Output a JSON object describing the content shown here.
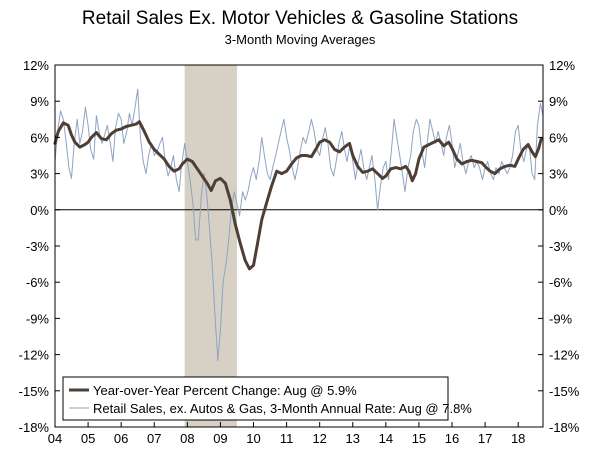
{
  "chart_data": {
    "type": "line",
    "title": "Retail Sales Ex. Motor Vehicles & Gasoline Stations",
    "subtitle": "3-Month Moving Averages",
    "xlabel": "",
    "ylabel": "",
    "ylim": [
      -18,
      12
    ],
    "xlim": [
      2004.0,
      2018.75
    ],
    "y_ticks": [
      12,
      9,
      6,
      3,
      0,
      -3,
      -6,
      -9,
      -12,
      -15,
      -18
    ],
    "y_tick_labels": [
      "12%",
      "9%",
      "6%",
      "3%",
      "0%",
      "-3%",
      "-6%",
      "-9%",
      "-12%",
      "-15%",
      "-18%"
    ],
    "x_tick_labels": [
      "04",
      "05",
      "06",
      "07",
      "08",
      "09",
      "10",
      "11",
      "12",
      "13",
      "14",
      "15",
      "16",
      "17",
      "18"
    ],
    "recession_shading": {
      "start": 2007.92,
      "end": 2009.5
    },
    "legend_position": "bottom-left",
    "series": [
      {
        "name": "Year-over-Year Percent Change: Aug @ 5.9%",
        "color": "#4d3f35",
        "points": [
          [
            2004.0,
            5.5
          ],
          [
            2004.1,
            6.5
          ],
          [
            2004.25,
            7.2
          ],
          [
            2004.4,
            7.0
          ],
          [
            2004.5,
            6.2
          ],
          [
            2004.6,
            5.6
          ],
          [
            2004.75,
            5.2
          ],
          [
            2004.9,
            5.4
          ],
          [
            2005.0,
            5.6
          ],
          [
            2005.1,
            6.0
          ],
          [
            2005.25,
            6.4
          ],
          [
            2005.4,
            5.9
          ],
          [
            2005.55,
            5.8
          ],
          [
            2005.7,
            6.3
          ],
          [
            2005.85,
            6.6
          ],
          [
            2006.0,
            6.7
          ],
          [
            2006.15,
            6.9
          ],
          [
            2006.3,
            7.0
          ],
          [
            2006.45,
            7.1
          ],
          [
            2006.55,
            7.3
          ],
          [
            2006.7,
            6.5
          ],
          [
            2006.85,
            5.6
          ],
          [
            2007.0,
            5.0
          ],
          [
            2007.15,
            4.6
          ],
          [
            2007.3,
            4.2
          ],
          [
            2007.45,
            3.6
          ],
          [
            2007.6,
            3.2
          ],
          [
            2007.75,
            3.4
          ],
          [
            2007.85,
            3.8
          ],
          [
            2008.0,
            4.2
          ],
          [
            2008.15,
            4.0
          ],
          [
            2008.3,
            3.4
          ],
          [
            2008.45,
            2.8
          ],
          [
            2008.6,
            2.2
          ],
          [
            2008.72,
            1.6
          ],
          [
            2008.85,
            2.4
          ],
          [
            2009.0,
            2.6
          ],
          [
            2009.15,
            2.2
          ],
          [
            2009.3,
            0.8
          ],
          [
            2009.45,
            -1.2
          ],
          [
            2009.6,
            -2.8
          ],
          [
            2009.75,
            -4.2
          ],
          [
            2009.88,
            -4.9
          ],
          [
            2010.0,
            -4.6
          ],
          [
            2010.12,
            -2.8
          ],
          [
            2010.25,
            -0.8
          ],
          [
            2010.4,
            0.6
          ],
          [
            2010.55,
            2.0
          ],
          [
            2010.7,
            3.2
          ],
          [
            2010.85,
            3.0
          ],
          [
            2011.0,
            3.2
          ],
          [
            2011.15,
            3.8
          ],
          [
            2011.3,
            4.3
          ],
          [
            2011.45,
            4.5
          ],
          [
            2011.6,
            4.5
          ],
          [
            2011.75,
            4.4
          ],
          [
            2011.9,
            5.1
          ],
          [
            2012.0,
            5.6
          ],
          [
            2012.15,
            5.8
          ],
          [
            2012.3,
            5.6
          ],
          [
            2012.45,
            5.0
          ],
          [
            2012.6,
            4.8
          ],
          [
            2012.75,
            5.2
          ],
          [
            2012.9,
            5.5
          ],
          [
            2013.0,
            4.5
          ],
          [
            2013.15,
            3.6
          ],
          [
            2013.3,
            3.1
          ],
          [
            2013.45,
            3.2
          ],
          [
            2013.6,
            3.4
          ],
          [
            2013.75,
            3.0
          ],
          [
            2013.9,
            2.6
          ],
          [
            2014.0,
            2.8
          ],
          [
            2014.15,
            3.4
          ],
          [
            2014.3,
            3.5
          ],
          [
            2014.45,
            3.4
          ],
          [
            2014.6,
            3.6
          ],
          [
            2014.7,
            3.2
          ],
          [
            2014.8,
            2.4
          ],
          [
            2014.9,
            3.0
          ],
          [
            2015.0,
            4.2
          ],
          [
            2015.15,
            5.2
          ],
          [
            2015.3,
            5.4
          ],
          [
            2015.45,
            5.6
          ],
          [
            2015.6,
            5.8
          ],
          [
            2015.75,
            5.3
          ],
          [
            2015.9,
            5.6
          ],
          [
            2016.0,
            5.1
          ],
          [
            2016.15,
            4.2
          ],
          [
            2016.3,
            3.8
          ],
          [
            2016.45,
            4.0
          ],
          [
            2016.6,
            4.1
          ],
          [
            2016.75,
            4.0
          ],
          [
            2016.9,
            3.9
          ],
          [
            2017.0,
            3.6
          ],
          [
            2017.15,
            3.2
          ],
          [
            2017.3,
            3.0
          ],
          [
            2017.45,
            3.4
          ],
          [
            2017.6,
            3.6
          ],
          [
            2017.75,
            3.7
          ],
          [
            2017.9,
            3.6
          ],
          [
            2018.0,
            4.2
          ],
          [
            2018.15,
            5.0
          ],
          [
            2018.3,
            5.4
          ],
          [
            2018.42,
            4.8
          ],
          [
            2018.52,
            4.4
          ],
          [
            2018.62,
            5.1
          ],
          [
            2018.7,
            5.9
          ]
        ]
      },
      {
        "name": "Retail Sales, ex. Autos & Gas, 3-Month Annual Rate: Aug @ 7.8%",
        "color": "#8ea3c3",
        "points": [
          [
            2004.0,
            4.0
          ],
          [
            2004.08,
            6.5
          ],
          [
            2004.17,
            8.2
          ],
          [
            2004.25,
            7.5
          ],
          [
            2004.33,
            5.8
          ],
          [
            2004.42,
            3.5
          ],
          [
            2004.5,
            2.6
          ],
          [
            2004.58,
            5.5
          ],
          [
            2004.67,
            7.5
          ],
          [
            2004.75,
            5.5
          ],
          [
            2004.83,
            6.5
          ],
          [
            2004.92,
            8.5
          ],
          [
            2005.0,
            7.0
          ],
          [
            2005.08,
            5.0
          ],
          [
            2005.17,
            4.2
          ],
          [
            2005.25,
            7.8
          ],
          [
            2005.33,
            6.5
          ],
          [
            2005.42,
            5.5
          ],
          [
            2005.5,
            6.2
          ],
          [
            2005.58,
            7.0
          ],
          [
            2005.67,
            5.5
          ],
          [
            2005.75,
            4.0
          ],
          [
            2005.83,
            6.8
          ],
          [
            2005.92,
            8.0
          ],
          [
            2006.0,
            7.5
          ],
          [
            2006.08,
            5.5
          ],
          [
            2006.17,
            6.5
          ],
          [
            2006.25,
            8.0
          ],
          [
            2006.33,
            7.0
          ],
          [
            2006.42,
            8.5
          ],
          [
            2006.5,
            10.0
          ],
          [
            2006.58,
            6.0
          ],
          [
            2006.67,
            4.0
          ],
          [
            2006.75,
            3.0
          ],
          [
            2006.83,
            4.5
          ],
          [
            2006.92,
            5.5
          ],
          [
            2007.0,
            4.5
          ],
          [
            2007.08,
            4.8
          ],
          [
            2007.17,
            5.5
          ],
          [
            2007.25,
            6.0
          ],
          [
            2007.33,
            4.0
          ],
          [
            2007.42,
            2.8
          ],
          [
            2007.5,
            3.5
          ],
          [
            2007.58,
            4.5
          ],
          [
            2007.67,
            2.5
          ],
          [
            2007.75,
            1.5
          ],
          [
            2007.83,
            3.8
          ],
          [
            2007.92,
            5.5
          ],
          [
            2008.0,
            4.0
          ],
          [
            2008.08,
            2.5
          ],
          [
            2008.17,
            0.5
          ],
          [
            2008.25,
            -2.5
          ],
          [
            2008.33,
            -2.5
          ],
          [
            2008.42,
            1.0
          ],
          [
            2008.5,
            3.0
          ],
          [
            2008.58,
            1.5
          ],
          [
            2008.67,
            -1.5
          ],
          [
            2008.75,
            -4.5
          ],
          [
            2008.83,
            -8.5
          ],
          [
            2008.92,
            -12.5
          ],
          [
            2009.0,
            -10.0
          ],
          [
            2009.08,
            -6.0
          ],
          [
            2009.17,
            -4.5
          ],
          [
            2009.25,
            -2.5
          ],
          [
            2009.33,
            0.0
          ],
          [
            2009.42,
            1.5
          ],
          [
            2009.5,
            0.5
          ],
          [
            2009.58,
            -0.5
          ],
          [
            2009.67,
            1.5
          ],
          [
            2009.75,
            0.8
          ],
          [
            2009.83,
            1.5
          ],
          [
            2009.92,
            2.8
          ],
          [
            2010.0,
            3.5
          ],
          [
            2010.08,
            2.5
          ],
          [
            2010.17,
            4.0
          ],
          [
            2010.25,
            6.0
          ],
          [
            2010.33,
            4.5
          ],
          [
            2010.42,
            3.0
          ],
          [
            2010.5,
            2.5
          ],
          [
            2010.58,
            3.5
          ],
          [
            2010.67,
            4.5
          ],
          [
            2010.75,
            5.5
          ],
          [
            2010.83,
            6.5
          ],
          [
            2010.92,
            7.5
          ],
          [
            2011.0,
            6.0
          ],
          [
            2011.08,
            5.0
          ],
          [
            2011.17,
            3.5
          ],
          [
            2011.25,
            2.5
          ],
          [
            2011.33,
            3.5
          ],
          [
            2011.42,
            5.0
          ],
          [
            2011.5,
            6.0
          ],
          [
            2011.58,
            5.5
          ],
          [
            2011.67,
            6.5
          ],
          [
            2011.75,
            7.5
          ],
          [
            2011.83,
            6.5
          ],
          [
            2011.92,
            5.0
          ],
          [
            2012.0,
            4.5
          ],
          [
            2012.08,
            5.8
          ],
          [
            2012.17,
            6.8
          ],
          [
            2012.25,
            5.5
          ],
          [
            2012.33,
            3.5
          ],
          [
            2012.42,
            2.8
          ],
          [
            2012.5,
            4.0
          ],
          [
            2012.58,
            5.5
          ],
          [
            2012.67,
            6.5
          ],
          [
            2012.75,
            5.0
          ],
          [
            2012.83,
            4.0
          ],
          [
            2012.92,
            5.5
          ],
          [
            2013.0,
            4.0
          ],
          [
            2013.08,
            2.5
          ],
          [
            2013.17,
            4.0
          ],
          [
            2013.25,
            5.0
          ],
          [
            2013.33,
            3.5
          ],
          [
            2013.42,
            2.5
          ],
          [
            2013.5,
            3.5
          ],
          [
            2013.58,
            4.5
          ],
          [
            2013.67,
            2.5
          ],
          [
            2013.75,
            0.0
          ],
          [
            2013.83,
            1.8
          ],
          [
            2013.92,
            3.5
          ],
          [
            2014.0,
            4.0
          ],
          [
            2014.08,
            2.5
          ],
          [
            2014.17,
            5.0
          ],
          [
            2014.25,
            7.5
          ],
          [
            2014.33,
            6.0
          ],
          [
            2014.42,
            4.5
          ],
          [
            2014.5,
            3.0
          ],
          [
            2014.58,
            1.5
          ],
          [
            2014.67,
            3.5
          ],
          [
            2014.75,
            4.5
          ],
          [
            2014.83,
            6.5
          ],
          [
            2014.92,
            7.5
          ],
          [
            2015.0,
            7.0
          ],
          [
            2015.08,
            5.0
          ],
          [
            2015.17,
            3.5
          ],
          [
            2015.25,
            5.5
          ],
          [
            2015.33,
            7.5
          ],
          [
            2015.42,
            6.5
          ],
          [
            2015.5,
            5.5
          ],
          [
            2015.58,
            6.5
          ],
          [
            2015.67,
            5.5
          ],
          [
            2015.75,
            4.5
          ],
          [
            2015.83,
            6.0
          ],
          [
            2015.92,
            7.0
          ],
          [
            2016.0,
            5.5
          ],
          [
            2016.08,
            3.5
          ],
          [
            2016.17,
            4.5
          ],
          [
            2016.25,
            5.5
          ],
          [
            2016.33,
            4.0
          ],
          [
            2016.42,
            3.0
          ],
          [
            2016.5,
            4.0
          ],
          [
            2016.58,
            4.5
          ],
          [
            2016.67,
            3.5
          ],
          [
            2016.75,
            4.0
          ],
          [
            2016.83,
            3.5
          ],
          [
            2016.92,
            2.5
          ],
          [
            2017.0,
            3.5
          ],
          [
            2017.08,
            4.0
          ],
          [
            2017.17,
            3.0
          ],
          [
            2017.25,
            2.5
          ],
          [
            2017.33,
            3.5
          ],
          [
            2017.42,
            3.0
          ],
          [
            2017.5,
            4.0
          ],
          [
            2017.58,
            3.5
          ],
          [
            2017.67,
            3.0
          ],
          [
            2017.75,
            3.5
          ],
          [
            2017.83,
            4.5
          ],
          [
            2017.92,
            6.5
          ],
          [
            2018.0,
            7.0
          ],
          [
            2018.08,
            5.0
          ],
          [
            2018.17,
            4.0
          ],
          [
            2018.25,
            5.0
          ],
          [
            2018.33,
            5.5
          ],
          [
            2018.42,
            3.0
          ],
          [
            2018.5,
            2.5
          ],
          [
            2018.58,
            7.0
          ],
          [
            2018.67,
            8.8
          ],
          [
            2018.75,
            7.8
          ]
        ]
      }
    ]
  }
}
